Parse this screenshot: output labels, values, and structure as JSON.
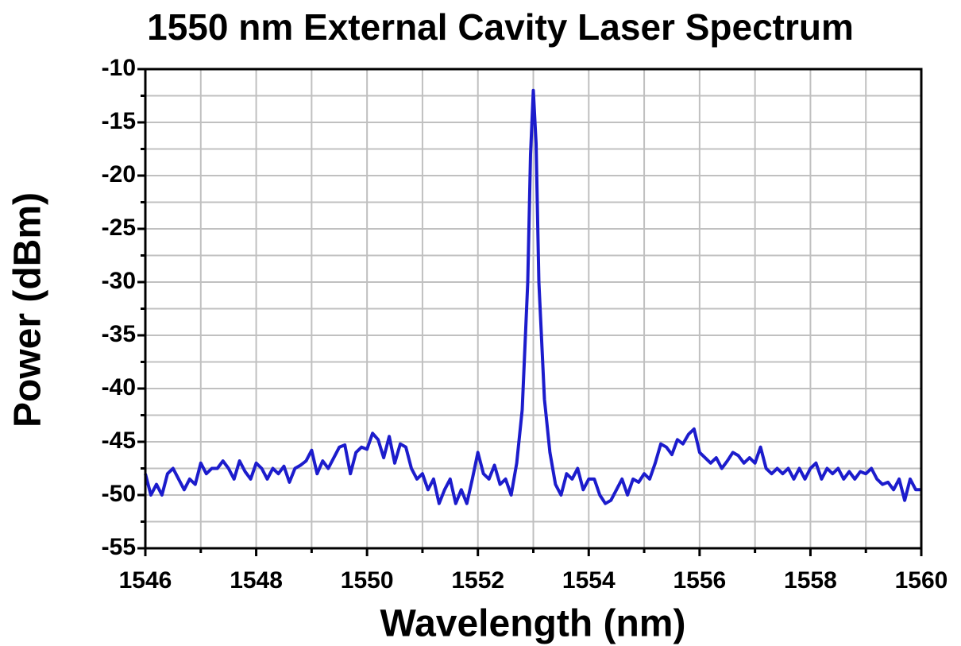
{
  "chart_data": {
    "type": "line",
    "title": "1550 nm External Cavity Laser Spectrum",
    "x_label": "Wavelength (nm)",
    "y_label": "Power (dBm)",
    "xlim": [
      1546,
      1560
    ],
    "xticks": [
      1546,
      1548,
      1550,
      1552,
      1554,
      1556,
      1558,
      1560
    ],
    "xminor": [
      1547,
      1549,
      1551,
      1553,
      1555,
      1557,
      1559
    ],
    "ylim": [
      -55,
      -10
    ],
    "yticks": [
      -10,
      -15,
      -20,
      -25,
      -30,
      -35,
      -40,
      -45,
      -50,
      -55
    ],
    "yminor": [
      -12.5,
      -17.5,
      -22.5,
      -27.5,
      -32.5,
      -37.5,
      -42.5,
      -47.5,
      -52.5
    ],
    "grid": true,
    "x": [
      1546.0,
      1546.1,
      1546.2,
      1546.3,
      1546.4,
      1546.5,
      1546.6,
      1546.7,
      1546.8,
      1546.9,
      1547.0,
      1547.1,
      1547.2,
      1547.3,
      1547.4,
      1547.5,
      1547.6,
      1547.7,
      1547.8,
      1547.9,
      1548.0,
      1548.1,
      1548.2,
      1548.3,
      1548.4,
      1548.5,
      1548.6,
      1548.7,
      1548.8,
      1548.9,
      1549.0,
      1549.1,
      1549.2,
      1549.3,
      1549.4,
      1549.5,
      1549.6,
      1549.7,
      1549.8,
      1549.9,
      1550.0,
      1550.1,
      1550.2,
      1550.3,
      1550.4,
      1550.5,
      1550.6,
      1550.7,
      1550.8,
      1550.9,
      1551.0,
      1551.1,
      1551.2,
      1551.3,
      1551.4,
      1551.5,
      1551.6,
      1551.7,
      1551.8,
      1551.9,
      1552.0,
      1552.1,
      1552.2,
      1552.3,
      1552.4,
      1552.5,
      1552.6,
      1552.7,
      1552.8,
      1552.9,
      1552.95,
      1553.0,
      1553.05,
      1553.1,
      1553.2,
      1553.3,
      1553.4,
      1553.5,
      1553.6,
      1553.7,
      1553.8,
      1553.9,
      1554.0,
      1554.1,
      1554.2,
      1554.3,
      1554.4,
      1554.5,
      1554.6,
      1554.7,
      1554.8,
      1554.9,
      1555.0,
      1555.1,
      1555.2,
      1555.3,
      1555.4,
      1555.5,
      1555.6,
      1555.7,
      1555.8,
      1555.9,
      1556.0,
      1556.1,
      1556.2,
      1556.3,
      1556.4,
      1556.5,
      1556.6,
      1556.7,
      1556.8,
      1556.9,
      1557.0,
      1557.1,
      1557.2,
      1557.3,
      1557.4,
      1557.5,
      1557.6,
      1557.7,
      1557.8,
      1557.9,
      1558.0,
      1558.1,
      1558.2,
      1558.3,
      1558.4,
      1558.5,
      1558.6,
      1558.7,
      1558.8,
      1558.9,
      1559.0,
      1559.1,
      1559.2,
      1559.3,
      1559.4,
      1559.5,
      1559.6,
      1559.7,
      1559.8,
      1559.9,
      1560.0
    ],
    "series": [
      {
        "color": "#1c1ccc",
        "values": [
          -48,
          -50,
          -49,
          -50,
          -48,
          -47.5,
          -48.5,
          -49.5,
          -48.5,
          -49,
          -47,
          -48,
          -47.5,
          -47.5,
          -46.8,
          -47.5,
          -48.5,
          -46.8,
          -47.8,
          -48.5,
          -47,
          -47.5,
          -48.5,
          -47.5,
          -48,
          -47.3,
          -48.8,
          -47.5,
          -47.2,
          -46.8,
          -45.8,
          -48,
          -46.8,
          -47.5,
          -46.5,
          -45.5,
          -45.3,
          -48,
          -46,
          -45.5,
          -45.7,
          -44.2,
          -44.8,
          -46.5,
          -44.5,
          -47,
          -45.2,
          -45.5,
          -47.5,
          -48.5,
          -48,
          -49.5,
          -48.5,
          -50.8,
          -49.5,
          -48.5,
          -50.8,
          -49.5,
          -50.8,
          -48.5,
          -46,
          -48,
          -48.5,
          -47.2,
          -49,
          -48.5,
          -50,
          -47,
          -42,
          -30,
          -18,
          -12,
          -17,
          -30,
          -41,
          -46,
          -49,
          -50,
          -48,
          -48.5,
          -47.5,
          -49.5,
          -48.5,
          -48.5,
          -50,
          -50.8,
          -50.5,
          -49.5,
          -48.5,
          -50,
          -48.5,
          -48.8,
          -48,
          -48.5,
          -47,
          -45.2,
          -45.5,
          -46.2,
          -44.8,
          -45.2,
          -44.3,
          -43.8,
          -46,
          -46.5,
          -47,
          -46.5,
          -47.5,
          -46.8,
          -46,
          -46.3,
          -47,
          -46.5,
          -47,
          -45.5,
          -47.5,
          -48,
          -47.5,
          -48,
          -47.5,
          -48.5,
          -47.5,
          -48.5,
          -47.5,
          -47,
          -48.5,
          -47.5,
          -48,
          -47.5,
          -48.5,
          -47.8,
          -48.5,
          -47.8,
          -48,
          -47.5,
          -48.5,
          -49,
          -48.8,
          -49.5,
          -48.5,
          -50.5,
          -48.5,
          -49.5,
          -49.5
        ]
      }
    ]
  }
}
